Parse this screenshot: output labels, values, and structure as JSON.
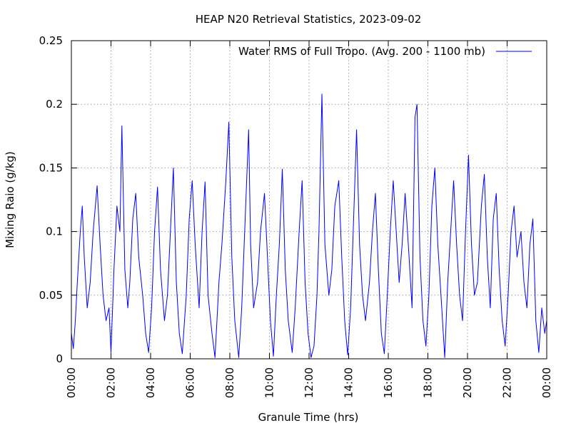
{
  "chart_data": {
    "type": "line",
    "title": "HEAP N20 Retrieval Statistics, 2023-09-02",
    "xlabel": "Granule Time (hrs)",
    "ylabel": "Mixing Raio (g/kg)",
    "xlim": [
      0,
      24
    ],
    "ylim": [
      0,
      0.25
    ],
    "grid": true,
    "legend_position": "top-right",
    "x_ticks": [
      {
        "value": 0,
        "label": "00:00"
      },
      {
        "value": 2,
        "label": "02:00"
      },
      {
        "value": 4,
        "label": "04:00"
      },
      {
        "value": 6,
        "label": "06:00"
      },
      {
        "value": 8,
        "label": "08:00"
      },
      {
        "value": 10,
        "label": "10:00"
      },
      {
        "value": 12,
        "label": "12:00"
      },
      {
        "value": 14,
        "label": "14:00"
      },
      {
        "value": 16,
        "label": "16:00"
      },
      {
        "value": 18,
        "label": "18:00"
      },
      {
        "value": 20,
        "label": "20:00"
      },
      {
        "value": 22,
        "label": "22:00"
      },
      {
        "value": 24,
        "label": "00:00"
      }
    ],
    "y_ticks": [
      {
        "value": 0,
        "label": "0"
      },
      {
        "value": 0.05,
        "label": "0.05"
      },
      {
        "value": 0.1,
        "label": "0.1"
      },
      {
        "value": 0.15,
        "label": "0.15"
      },
      {
        "value": 0.2,
        "label": "0.2"
      },
      {
        "value": 0.25,
        "label": "0.25"
      }
    ],
    "series": [
      {
        "name": "Water RMS of Full Tropo. (Avg. 200 - 1100 mb)",
        "color": "#0000ff",
        "x": [
          0,
          0.1,
          0.2,
          0.3,
          0.45,
          0.55,
          0.65,
          0.8,
          0.95,
          1.1,
          1.3,
          1.45,
          1.6,
          1.75,
          1.9,
          2.0,
          2.15,
          2.3,
          2.45,
          2.55,
          2.7,
          2.85,
          2.95,
          3.1,
          3.25,
          3.4,
          3.6,
          3.75,
          3.9,
          4.05,
          4.2,
          4.35,
          4.5,
          4.7,
          4.85,
          5.0,
          5.15,
          5.3,
          5.45,
          5.6,
          5.8,
          5.95,
          6.1,
          6.25,
          6.45,
          6.6,
          6.75,
          6.9,
          7.1,
          7.25,
          7.35,
          7.45,
          7.6,
          7.8,
          7.95,
          8.1,
          8.25,
          8.45,
          8.6,
          8.8,
          8.95,
          9.05,
          9.2,
          9.4,
          9.55,
          9.75,
          9.9,
          10.05,
          10.2,
          10.35,
          10.5,
          10.65,
          10.8,
          10.95,
          11.15,
          11.3,
          11.5,
          11.65,
          11.8,
          11.95,
          12.1,
          12.25,
          12.4,
          12.5,
          12.65,
          12.8,
          13.0,
          13.15,
          13.3,
          13.5,
          13.65,
          13.8,
          13.95,
          14.1,
          14.25,
          14.4,
          14.55,
          14.7,
          14.85,
          15.05,
          15.2,
          15.35,
          15.5,
          15.65,
          15.8,
          15.95,
          16.1,
          16.25,
          16.4,
          16.55,
          16.7,
          16.85,
          17.05,
          17.2,
          17.35,
          17.45,
          17.6,
          17.75,
          17.9,
          18.05,
          18.2,
          18.35,
          18.5,
          18.7,
          18.85,
          19.0,
          19.15,
          19.3,
          19.45,
          19.6,
          19.75,
          19.9,
          20.05,
          20.2,
          20.35,
          20.5,
          20.7,
          20.85,
          21.0,
          21.15,
          21.3,
          21.45,
          21.6,
          21.75,
          21.9,
          22.05,
          22.2,
          22.35,
          22.5,
          22.7,
          22.85,
          23.0,
          23.15,
          23.3,
          23.45,
          23.6,
          23.75,
          23.9,
          24.0
        ],
        "values": [
          0.02,
          0.008,
          0.03,
          0.06,
          0.1,
          0.12,
          0.08,
          0.04,
          0.06,
          0.1,
          0.136,
          0.09,
          0.05,
          0.03,
          0.04,
          0.005,
          0.07,
          0.12,
          0.1,
          0.183,
          0.07,
          0.04,
          0.06,
          0.11,
          0.13,
          0.08,
          0.05,
          0.02,
          0.005,
          0.04,
          0.1,
          0.135,
          0.07,
          0.03,
          0.05,
          0.1,
          0.15,
          0.06,
          0.02,
          0.004,
          0.05,
          0.11,
          0.14,
          0.09,
          0.04,
          0.1,
          0.139,
          0.05,
          0.02,
          0.001,
          0.03,
          0.06,
          0.09,
          0.14,
          0.186,
          0.08,
          0.03,
          0.001,
          0.04,
          0.12,
          0.18,
          0.09,
          0.04,
          0.06,
          0.1,
          0.13,
          0.08,
          0.03,
          0.002,
          0.05,
          0.09,
          0.149,
          0.07,
          0.03,
          0.005,
          0.04,
          0.1,
          0.14,
          0.06,
          0.02,
          0.001,
          0.01,
          0.05,
          0.1,
          0.208,
          0.09,
          0.05,
          0.07,
          0.12,
          0.14,
          0.08,
          0.03,
          0.003,
          0.04,
          0.11,
          0.18,
          0.09,
          0.05,
          0.03,
          0.06,
          0.1,
          0.13,
          0.07,
          0.02,
          0.004,
          0.05,
          0.1,
          0.14,
          0.1,
          0.06,
          0.09,
          0.13,
          0.08,
          0.04,
          0.19,
          0.2,
          0.08,
          0.03,
          0.01,
          0.05,
          0.12,
          0.15,
          0.09,
          0.04,
          0.001,
          0.06,
          0.1,
          0.14,
          0.09,
          0.05,
          0.03,
          0.1,
          0.16,
          0.09,
          0.05,
          0.06,
          0.12,
          0.145,
          0.08,
          0.04,
          0.11,
          0.13,
          0.07,
          0.03,
          0.01,
          0.05,
          0.1,
          0.12,
          0.08,
          0.1,
          0.06,
          0.04,
          0.09,
          0.11,
          0.03,
          0.005,
          0.04,
          0.02,
          0.03
        ]
      }
    ]
  }
}
